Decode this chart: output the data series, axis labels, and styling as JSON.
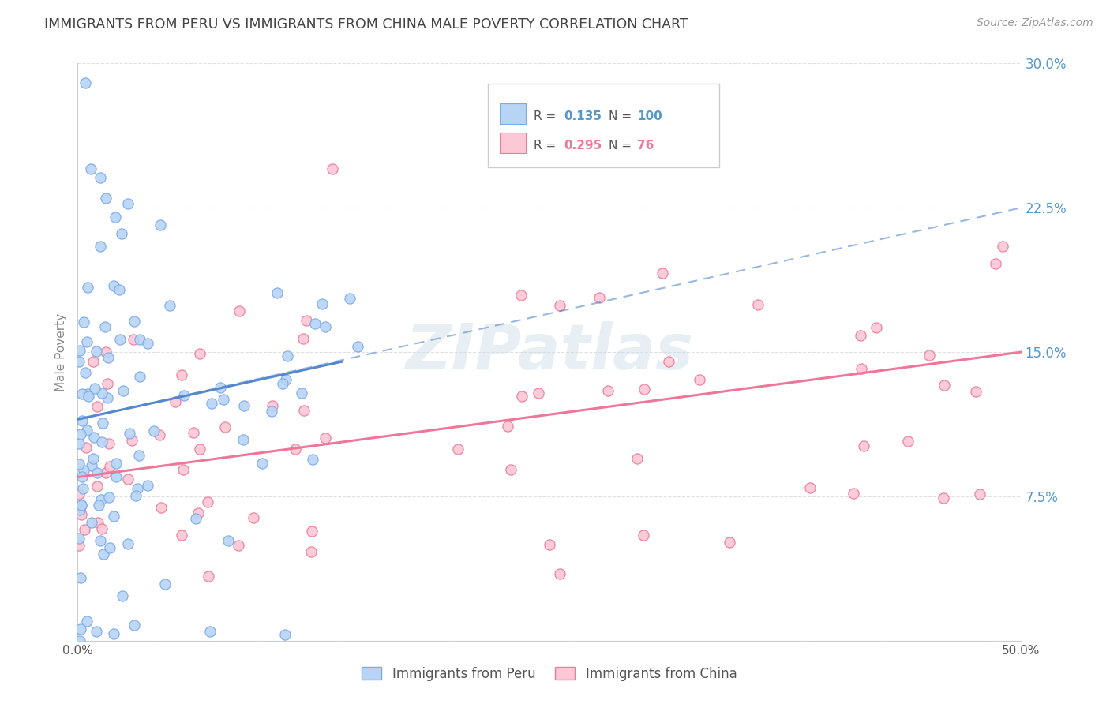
{
  "title": "IMMIGRANTS FROM PERU VS IMMIGRANTS FROM CHINA MALE POVERTY CORRELATION CHART",
  "source": "Source: ZipAtlas.com",
  "ylabel": "Male Poverty",
  "peru_R": 0.135,
  "peru_N": 100,
  "china_R": 0.295,
  "china_N": 76,
  "peru_color": "#b8d4f5",
  "peru_edge_color": "#7aaaee",
  "china_color": "#fcc8d5",
  "china_edge_color": "#f07898",
  "peru_line_color": "#5588cc",
  "china_line_color": "#ee7799",
  "watermark": "ZIPatlas",
  "watermark_color": "#ccdde8",
  "background_color": "#ffffff",
  "grid_color": "#e0e0e0",
  "title_color": "#444444",
  "right_axis_color": "#5599cc",
  "xlim": [
    0,
    50
  ],
  "ylim": [
    0,
    30
  ],
  "peru_trend_x0": 0,
  "peru_trend_x1": 14,
  "peru_trend_y0": 11.5,
  "peru_trend_y1": 14.5,
  "china_trend_x0": 0,
  "china_trend_x1": 50,
  "china_trend_y0": 8.5,
  "china_trend_y1": 15.0,
  "peru_dashed_x0": 0,
  "peru_dashed_x1": 50,
  "peru_dashed_y0": 11.5,
  "peru_dashed_y1": 22.5
}
